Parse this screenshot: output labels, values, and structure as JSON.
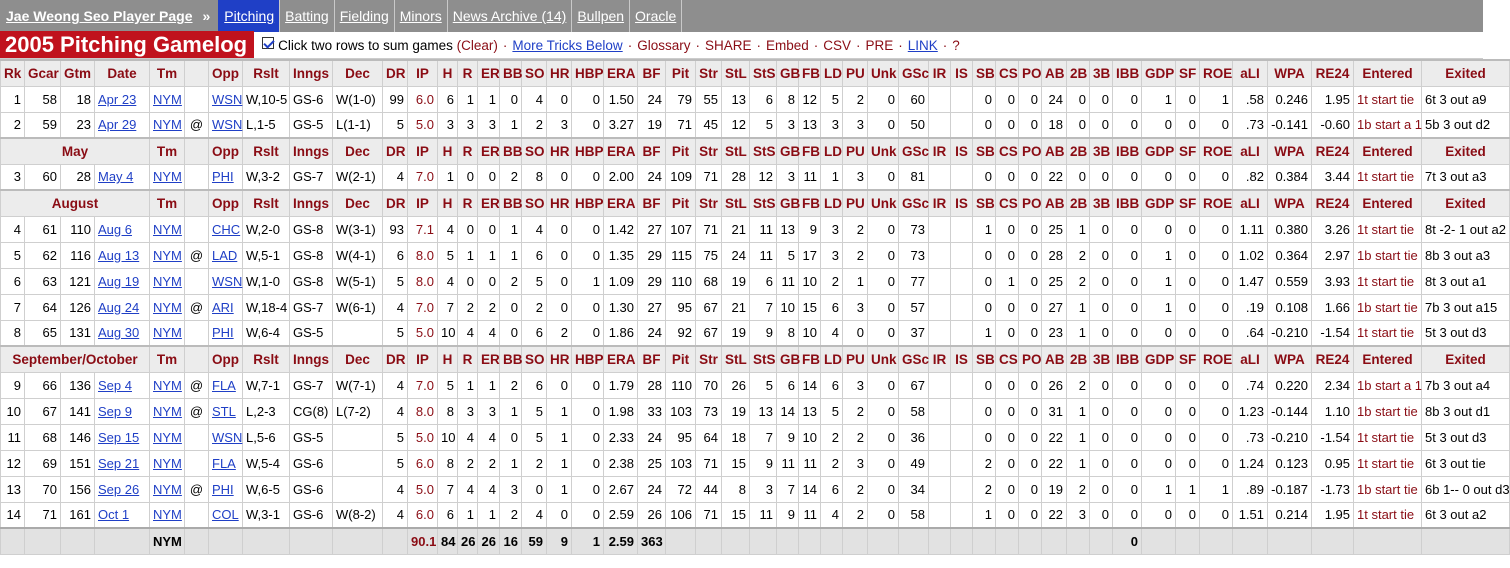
{
  "nav": {
    "player_page": "Jae Weong Seo Player Page",
    "separator": "»",
    "tabs": [
      "Pitching",
      "Batting",
      "Fielding",
      "Minors",
      "News Archive (14)",
      "Bullpen",
      "Oracle"
    ]
  },
  "section": {
    "title": "2005 Pitching Gamelog",
    "tools_text": "Click two rows to sum games",
    "clear": "(Clear)",
    "more_tricks": "More Tricks Below",
    "glossary": "Glossary",
    "share": "SHARE",
    "embed": "Embed",
    "csv": "CSV",
    "pre": "PRE",
    "link": "LINK",
    "help": "?",
    "dot": "·"
  },
  "columns": [
    "Rk",
    "Gcar",
    "Gtm",
    "Date",
    "Tm",
    "",
    "Opp",
    "Rslt",
    "Inngs",
    "Dec",
    "DR",
    "IP",
    "H",
    "R",
    "ER",
    "BB",
    "SO",
    "HR",
    "HBP",
    "ERA",
    "BF",
    "Pit",
    "Str",
    "StL",
    "StS",
    "GB",
    "FB",
    "LD",
    "PU",
    "Unk",
    "GSc",
    "IR",
    "IS",
    "SB",
    "CS",
    "PO",
    "AB",
    "2B",
    "3B",
    "IBB",
    "GDP",
    "SF",
    "ROE",
    "aLI",
    "WPA",
    "RE24",
    "Entered",
    "Exited"
  ],
  "groups": [
    {
      "label": "",
      "rows": [
        [
          "1",
          "58",
          "18",
          "Apr 23",
          "NYM",
          "",
          "WSN",
          "W,10-5",
          "GS-6",
          "W(1-0)",
          "99",
          "6.0",
          "6",
          "1",
          "1",
          "0",
          "4",
          "0",
          "0",
          "1.50",
          "24",
          "79",
          "55",
          "13",
          "6",
          "8",
          "12",
          "5",
          "2",
          "0",
          "60",
          "",
          "",
          "0",
          "0",
          "0",
          "24",
          "0",
          "0",
          "0",
          "1",
          "0",
          "1",
          ".58",
          "0.246",
          "1.95",
          "1t start tie",
          "6t 3 out a9"
        ],
        [
          "2",
          "59",
          "23",
          "Apr 29",
          "NYM",
          "@",
          "WSN",
          "L,1-5",
          "GS-5",
          "L(1-1)",
          "5",
          "5.0",
          "3",
          "3",
          "3",
          "1",
          "2",
          "3",
          "0",
          "3.27",
          "19",
          "71",
          "45",
          "12",
          "5",
          "3",
          "13",
          "3",
          "3",
          "0",
          "50",
          "",
          "",
          "0",
          "0",
          "0",
          "18",
          "0",
          "0",
          "0",
          "0",
          "0",
          "0",
          ".73",
          "-0.141",
          "-0.60",
          "1b start a 1",
          "5b 3 out d2"
        ]
      ]
    },
    {
      "label": "May",
      "rows": [
        [
          "3",
          "60",
          "28",
          "May 4",
          "NYM",
          "",
          "PHI",
          "W,3-2",
          "GS-7",
          "W(2-1)",
          "4",
          "7.0",
          "1",
          "0",
          "0",
          "2",
          "8",
          "0",
          "0",
          "2.00",
          "24",
          "109",
          "71",
          "28",
          "12",
          "3",
          "11",
          "1",
          "3",
          "0",
          "81",
          "",
          "",
          "0",
          "0",
          "0",
          "22",
          "0",
          "0",
          "0",
          "0",
          "0",
          "0",
          ".82",
          "0.384",
          "3.44",
          "1t start tie",
          "7t 3 out a3"
        ]
      ]
    },
    {
      "label": "August",
      "rows": [
        [
          "4",
          "61",
          "110",
          "Aug 6",
          "NYM",
          "",
          "CHC",
          "W,2-0",
          "GS-8",
          "W(3-1)",
          "93",
          "7.1",
          "4",
          "0",
          "0",
          "1",
          "4",
          "0",
          "0",
          "1.42",
          "27",
          "107",
          "71",
          "21",
          "11",
          "13",
          "9",
          "3",
          "2",
          "0",
          "73",
          "",
          "",
          "1",
          "0",
          "0",
          "25",
          "1",
          "0",
          "0",
          "0",
          "0",
          "0",
          "1.11",
          "0.380",
          "3.26",
          "1t start tie",
          "8t -2- 1 out a2"
        ],
        [
          "5",
          "62",
          "116",
          "Aug 13",
          "NYM",
          "@",
          "LAD",
          "W,5-1",
          "GS-8",
          "W(4-1)",
          "6",
          "8.0",
          "5",
          "1",
          "1",
          "1",
          "6",
          "0",
          "0",
          "1.35",
          "29",
          "115",
          "75",
          "24",
          "11",
          "5",
          "17",
          "3",
          "2",
          "0",
          "73",
          "",
          "",
          "0",
          "0",
          "0",
          "28",
          "2",
          "0",
          "0",
          "1",
          "0",
          "0",
          "1.02",
          "0.364",
          "2.97",
          "1b start tie",
          "8b 3 out a3"
        ],
        [
          "6",
          "63",
          "121",
          "Aug 19",
          "NYM",
          "",
          "WSN",
          "W,1-0",
          "GS-8",
          "W(5-1)",
          "5",
          "8.0",
          "4",
          "0",
          "0",
          "2",
          "5",
          "0",
          "1",
          "1.09",
          "29",
          "110",
          "68",
          "19",
          "6",
          "11",
          "10",
          "2",
          "1",
          "0",
          "77",
          "",
          "",
          "0",
          "1",
          "0",
          "25",
          "2",
          "0",
          "0",
          "1",
          "0",
          "0",
          "1.47",
          "0.559",
          "3.93",
          "1t start tie",
          "8t 3 out a1"
        ],
        [
          "7",
          "64",
          "126",
          "Aug 24",
          "NYM",
          "@",
          "ARI",
          "W,18-4",
          "GS-7",
          "W(6-1)",
          "4",
          "7.0",
          "7",
          "2",
          "2",
          "0",
          "2",
          "0",
          "0",
          "1.30",
          "27",
          "95",
          "67",
          "21",
          "7",
          "10",
          "15",
          "6",
          "3",
          "0",
          "57",
          "",
          "",
          "0",
          "0",
          "0",
          "27",
          "1",
          "0",
          "0",
          "1",
          "0",
          "0",
          ".19",
          "0.108",
          "1.66",
          "1b start tie",
          "7b 3 out a15"
        ],
        [
          "8",
          "65",
          "131",
          "Aug 30",
          "NYM",
          "",
          "PHI",
          "W,6-4",
          "GS-5",
          "",
          "5",
          "5.0",
          "10",
          "4",
          "4",
          "0",
          "6",
          "2",
          "0",
          "1.86",
          "24",
          "92",
          "67",
          "19",
          "9",
          "8",
          "10",
          "4",
          "0",
          "0",
          "37",
          "",
          "",
          "1",
          "0",
          "0",
          "23",
          "1",
          "0",
          "0",
          "0",
          "0",
          "0",
          ".64",
          "-0.210",
          "-1.54",
          "1t start tie",
          "5t 3 out d3"
        ]
      ]
    },
    {
      "label": "September/October",
      "rows": [
        [
          "9",
          "66",
          "136",
          "Sep 4",
          "NYM",
          "@",
          "FLA",
          "W,7-1",
          "GS-7",
          "W(7-1)",
          "4",
          "7.0",
          "5",
          "1",
          "1",
          "2",
          "6",
          "0",
          "0",
          "1.79",
          "28",
          "110",
          "70",
          "26",
          "5",
          "6",
          "14",
          "6",
          "3",
          "0",
          "67",
          "",
          "",
          "0",
          "0",
          "0",
          "26",
          "2",
          "0",
          "0",
          "0",
          "0",
          "0",
          ".74",
          "0.220",
          "2.34",
          "1b start a 1",
          "7b 3 out a4"
        ],
        [
          "10",
          "67",
          "141",
          "Sep 9",
          "NYM",
          "@",
          "STL",
          "L,2-3",
          "CG(8)",
          "L(7-2)",
          "4",
          "8.0",
          "8",
          "3",
          "3",
          "1",
          "5",
          "1",
          "0",
          "1.98",
          "33",
          "103",
          "73",
          "19",
          "13",
          "14",
          "13",
          "5",
          "2",
          "0",
          "58",
          "",
          "",
          "0",
          "0",
          "0",
          "31",
          "1",
          "0",
          "0",
          "0",
          "0",
          "0",
          "1.23",
          "-0.144",
          "1.10",
          "1b start tie",
          "8b 3 out d1"
        ],
        [
          "11",
          "68",
          "146",
          "Sep 15",
          "NYM",
          "",
          "WSN",
          "L,5-6",
          "GS-5",
          "",
          "5",
          "5.0",
          "10",
          "4",
          "4",
          "0",
          "5",
          "1",
          "0",
          "2.33",
          "24",
          "95",
          "64",
          "18",
          "7",
          "9",
          "10",
          "2",
          "2",
          "0",
          "36",
          "",
          "",
          "0",
          "0",
          "0",
          "22",
          "1",
          "0",
          "0",
          "0",
          "0",
          "0",
          ".73",
          "-0.210",
          "-1.54",
          "1t start tie",
          "5t 3 out d3"
        ],
        [
          "12",
          "69",
          "151",
          "Sep 21",
          "NYM",
          "",
          "FLA",
          "W,5-4",
          "GS-6",
          "",
          "5",
          "6.0",
          "8",
          "2",
          "2",
          "1",
          "2",
          "1",
          "0",
          "2.38",
          "25",
          "103",
          "71",
          "15",
          "9",
          "11",
          "11",
          "2",
          "3",
          "0",
          "49",
          "",
          "",
          "2",
          "0",
          "0",
          "22",
          "1",
          "0",
          "0",
          "0",
          "0",
          "0",
          "1.24",
          "0.123",
          "0.95",
          "1t start tie",
          "6t 3 out tie"
        ],
        [
          "13",
          "70",
          "156",
          "Sep 26",
          "NYM",
          "@",
          "PHI",
          "W,6-5",
          "GS-6",
          "",
          "4",
          "5.0",
          "7",
          "4",
          "4",
          "3",
          "0",
          "1",
          "0",
          "2.67",
          "24",
          "72",
          "44",
          "8",
          "3",
          "7",
          "14",
          "6",
          "2",
          "0",
          "34",
          "",
          "",
          "2",
          "0",
          "0",
          "19",
          "2",
          "0",
          "0",
          "1",
          "1",
          "1",
          ".89",
          "-0.187",
          "-1.73",
          "1b start tie",
          "6b 1-- 0 out d3"
        ],
        [
          "14",
          "71",
          "161",
          "Oct 1",
          "NYM",
          "",
          "COL",
          "W,3-1",
          "GS-6",
          "W(8-2)",
          "4",
          "6.0",
          "6",
          "1",
          "1",
          "2",
          "4",
          "0",
          "0",
          "2.59",
          "26",
          "106",
          "71",
          "15",
          "11",
          "9",
          "11",
          "4",
          "2",
          "0",
          "58",
          "",
          "",
          "1",
          "0",
          "0",
          "22",
          "3",
          "0",
          "0",
          "0",
          "0",
          "0",
          "1.51",
          "0.214",
          "1.95",
          "1t start tie",
          "6t 3 out a2"
        ]
      ]
    }
  ],
  "summary": [
    "",
    "",
    "",
    "",
    "NYM",
    "",
    "",
    "",
    "",
    "",
    "",
    "90.1",
    "84",
    "26",
    "26",
    "16",
    "59",
    "9",
    "1",
    "2.59",
    "363",
    "",
    "",
    "",
    "",
    "",
    "",
    "",
    "",
    "",
    "",
    "",
    "",
    "",
    "",
    "",
    "",
    "",
    "",
    "0",
    "",
    "",
    "",
    "",
    "",
    "",
    "",
    ""
  ]
}
